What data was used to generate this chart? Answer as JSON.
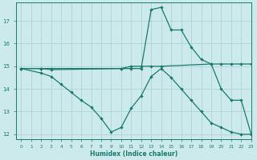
{
  "xlabel": "Humidex (Indice chaleur)",
  "bg_color": "#cce9ec",
  "grid_color": "#aed4d8",
  "line_color": "#1a7a6e",
  "xlim": [
    -0.5,
    23
  ],
  "ylim": [
    11.8,
    17.8
  ],
  "yticks": [
    12,
    13,
    14,
    15,
    16,
    17
  ],
  "xticks": [
    0,
    1,
    2,
    3,
    4,
    5,
    6,
    7,
    8,
    9,
    10,
    11,
    12,
    13,
    14,
    15,
    16,
    17,
    18,
    19,
    20,
    21,
    22,
    23
  ],
  "lines": [
    {
      "x": [
        0,
        2,
        3,
        10,
        11,
        12,
        13,
        14,
        19,
        20,
        21,
        22,
        23
      ],
      "y": [
        14.9,
        14.9,
        14.9,
        14.9,
        15.0,
        15.0,
        15.0,
        15.0,
        15.1,
        15.1,
        15.1,
        15.1,
        15.1
      ]
    },
    {
      "x": [
        0,
        2,
        3,
        10,
        11,
        12,
        13,
        14,
        15,
        16,
        17,
        18,
        19,
        20,
        21,
        22,
        23
      ],
      "y": [
        14.9,
        14.9,
        14.85,
        14.9,
        14.9,
        14.9,
        17.5,
        17.6,
        16.6,
        16.6,
        15.85,
        15.3,
        15.1,
        14.0,
        13.5,
        13.5,
        12.0
      ]
    },
    {
      "x": [
        0,
        2,
        3,
        4,
        5,
        6,
        7,
        8,
        9,
        10,
        11,
        12,
        13,
        14,
        15,
        16,
        17,
        18,
        19,
        20,
        21,
        22,
        23
      ],
      "y": [
        14.9,
        14.7,
        14.55,
        14.2,
        13.85,
        13.5,
        13.2,
        12.7,
        12.1,
        12.3,
        13.15,
        13.7,
        14.55,
        14.9,
        14.5,
        14.0,
        13.5,
        13.0,
        12.5,
        12.3,
        12.1,
        12.0,
        12.0
      ]
    }
  ]
}
